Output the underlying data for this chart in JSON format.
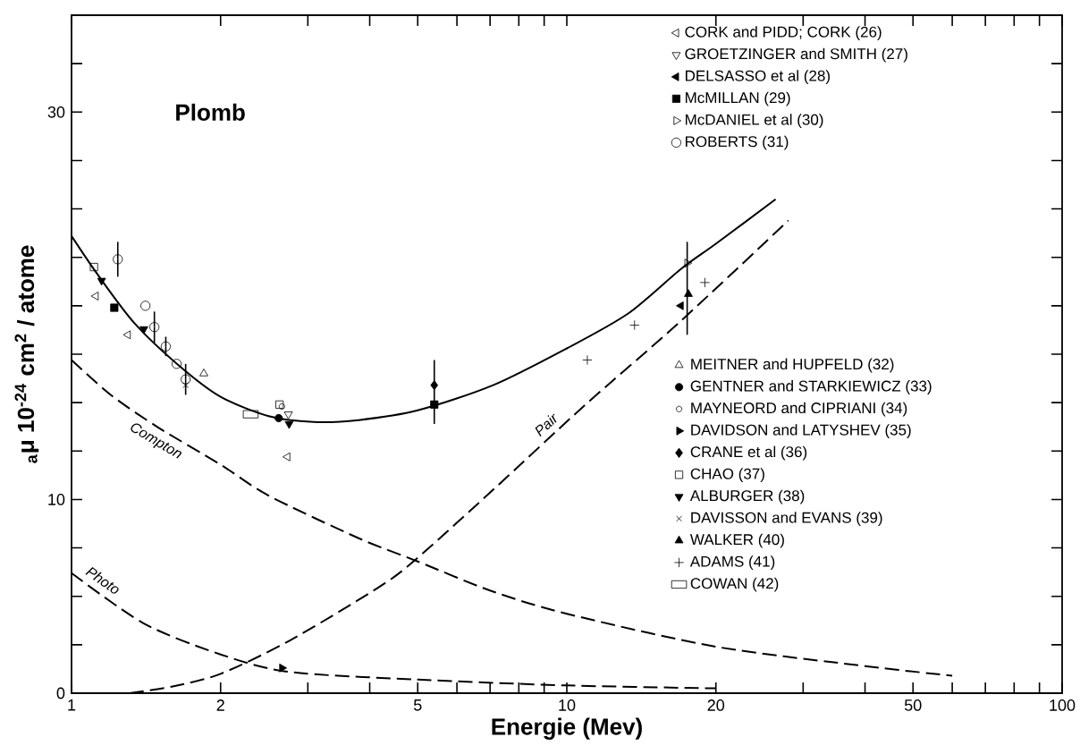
{
  "chart_data": {
    "type": "scatter",
    "annotations": [
      "Plomb"
    ],
    "xlabel": "Energie (Mev)",
    "ylabel": "$_{a}$μ 10$^{-24}$ cm$^{2}$ / atome",
    "log": "x",
    "xlim": [
      1,
      100
    ],
    "xticks": [
      1,
      2,
      {
        "value": 3,
        "label": null
      },
      {
        "value": 4,
        "label": null
      },
      5,
      {
        "value": 6,
        "label": null
      },
      {
        "value": 7,
        "label": null
      },
      {
        "value": 8,
        "label": null
      },
      {
        "value": 9,
        "label": null
      },
      10,
      20,
      {
        "value": 30,
        "label": null
      },
      {
        "value": 40,
        "label": null
      },
      50,
      {
        "value": 60,
        "label": null
      },
      {
        "value": 70,
        "label": null
      },
      {
        "value": 80,
        "label": null
      },
      {
        "value": 90,
        "label": null
      },
      100
    ],
    "ylim": [
      0,
      35
    ],
    "yticks": [
      0,
      {
        "value": 2.5,
        "label": null
      },
      {
        "value": 5,
        "label": null
      },
      {
        "value": 7.5,
        "label": null
      },
      10,
      {
        "value": 12.5,
        "label": null
      },
      {
        "value": 15,
        "label": null
      },
      {
        "value": 17.5,
        "label": null
      },
      {
        "value": 20,
        "label": null
      },
      {
        "value": 22.5,
        "label": null
      },
      {
        "value": 25,
        "label": null
      },
      {
        "value": 27.5,
        "label": null
      },
      30,
      {
        "value": 32.5,
        "label": null
      }
    ],
    "legend": "right",
    "series": [
      {
        "name": "CORK and PIDD; CORK (26)",
        "color": "#000000",
        "marker": "triangle-left",
        "x": [
          1.12,
          1.3,
          2.73
        ],
        "values": [
          20.5,
          18.5,
          12.2
        ]
      },
      {
        "name": "GROETZINGER and SMITH (27)",
        "color": "#000000",
        "marker": "triangle-down",
        "x": [
          2.74
        ],
        "values": [
          14.4
        ]
      },
      {
        "name": "DELSASSO et al (28)",
        "color": "#000000",
        "marker": "triangle-left-filled",
        "x": [
          17.0
        ],
        "values": [
          20.0
        ]
      },
      {
        "name": "McMILLAN (29)",
        "color": "#000000",
        "marker": "square-filled",
        "x": [
          1.22,
          5.4
        ],
        "values": [
          19.9,
          14.9
        ]
      },
      {
        "name": "McDANIEL et al (30)",
        "color": "#000000",
        "marker": "triangle-right",
        "x": [
          17.5
        ],
        "values": [
          22.2
        ],
        "errors": [
          [
            18.5,
            23.3
          ]
        ]
      },
      {
        "name": "ROBERTS (31)",
        "color": "#000000",
        "marker": "circle",
        "x": [
          1.24,
          1.41,
          1.47,
          1.55,
          1.63,
          1.7
        ],
        "values": [
          22.4,
          20.0,
          18.9,
          17.9,
          17.0,
          16.2
        ],
        "errors": [
          0.9,
          null,
          0.8,
          0.5,
          null,
          0.8
        ]
      },
      {
        "name": "MEITNER and HUPFELD (32)",
        "color": "#000000",
        "marker": "triangle",
        "x": [
          1.85
        ],
        "values": [
          16.5
        ]
      },
      {
        "name": "GENTNER and STARKIEWICZ (33)",
        "color": "#000000",
        "marker": "circle-filled",
        "x": [
          2.62
        ],
        "values": [
          14.2
        ]
      },
      {
        "name": "MAYNEORD and CIPRIANI (34)",
        "color": "#000000",
        "marker": "circle-small",
        "x": [
          2.66
        ],
        "values": [
          14.8
        ]
      },
      {
        "name": "DAVIDSON and LATYSHEV (35)",
        "color": "#000000",
        "marker": "triangle-right-filled",
        "x": [
          2.66
        ],
        "values": [
          1.3
        ]
      },
      {
        "name": "CRANE et al (36)",
        "color": "#000000",
        "marker": "diamond-filled",
        "x": [
          5.4
        ],
        "values": [
          15.9
        ],
        "errors": [
          [
            13.9,
            17.2
          ]
        ]
      },
      {
        "name": "CHAO (37)",
        "color": "#000000",
        "marker": "square",
        "x": [
          1.11,
          2.63
        ],
        "values": [
          22.0,
          14.9
        ]
      },
      {
        "name": "ALBURGER (38)",
        "color": "#000000",
        "marker": "triangle-down-filled",
        "x": [
          1.15,
          1.4,
          2.75
        ],
        "values": [
          21.3,
          18.8,
          13.9
        ]
      },
      {
        "name": "DAVISSON and EVANS (39)",
        "color": "#000000",
        "marker": "cross",
        "x": [
          1.7
        ],
        "values": [
          15.9
        ]
      },
      {
        "name": "WALKER (40)",
        "color": "#000000",
        "marker": "triangle-filled",
        "x": [
          17.6
        ],
        "values": [
          20.6
        ]
      },
      {
        "name": "ADAMS (41)",
        "color": "#000000",
        "marker": "plus",
        "x": [
          11.0,
          13.7,
          19.0
        ],
        "values": [
          17.2,
          19.0,
          21.2
        ]
      },
      {
        "name": "COWAN (42)",
        "color": "#000000",
        "marker": "rectangle",
        "x": [
          2.3
        ],
        "values": [
          14.4
        ]
      },
      {
        "type": "line",
        "color": "#000000",
        "line_style": "solid",
        "marker": "none",
        "x": [
          1,
          1.13,
          1.34,
          1.65,
          2,
          2.5,
          3.08,
          3.8,
          5,
          7.1,
          10,
          13.3,
          17,
          20,
          26.4
        ],
        "values": [
          23.6,
          21.6,
          19.1,
          16.9,
          15.3,
          14.3,
          14.0,
          14.1,
          14.6,
          15.9,
          17.8,
          19.6,
          21.9,
          23.2,
          25.5
        ]
      },
      {
        "type": "line",
        "name": "Compton",
        "color": "#000000",
        "line_style": "dashed",
        "marker": "none",
        "x": [
          1,
          1.2,
          1.5,
          2,
          2.5,
          3.8,
          5,
          7,
          10,
          20,
          40,
          60
        ],
        "values": [
          17.2,
          15.4,
          13.7,
          11.8,
          10.2,
          8.0,
          6.8,
          5.3,
          4.1,
          2.4,
          1.4,
          0.9
        ]
      },
      {
        "type": "line",
        "name": "Pair",
        "color": "#000000",
        "line_style": "dashed",
        "marker": "none",
        "x": [
          1.31,
          1.6,
          2,
          2.75,
          4.13,
          4.9,
          7.1,
          10.8,
          16.8,
          28
        ],
        "values": [
          0,
          0.35,
          1.0,
          2.7,
          5.4,
          6.8,
          10.5,
          14.8,
          19.1,
          24.4
        ]
      },
      {
        "type": "line",
        "name": "Photo",
        "color": "#000000",
        "line_style": "dashed",
        "marker": "none",
        "x": [
          1,
          1.4,
          2,
          2.75,
          5,
          10,
          20
        ],
        "values": [
          6.2,
          3.6,
          2.0,
          1.1,
          0.7,
          0.4,
          0.25
        ]
      }
    ]
  }
}
